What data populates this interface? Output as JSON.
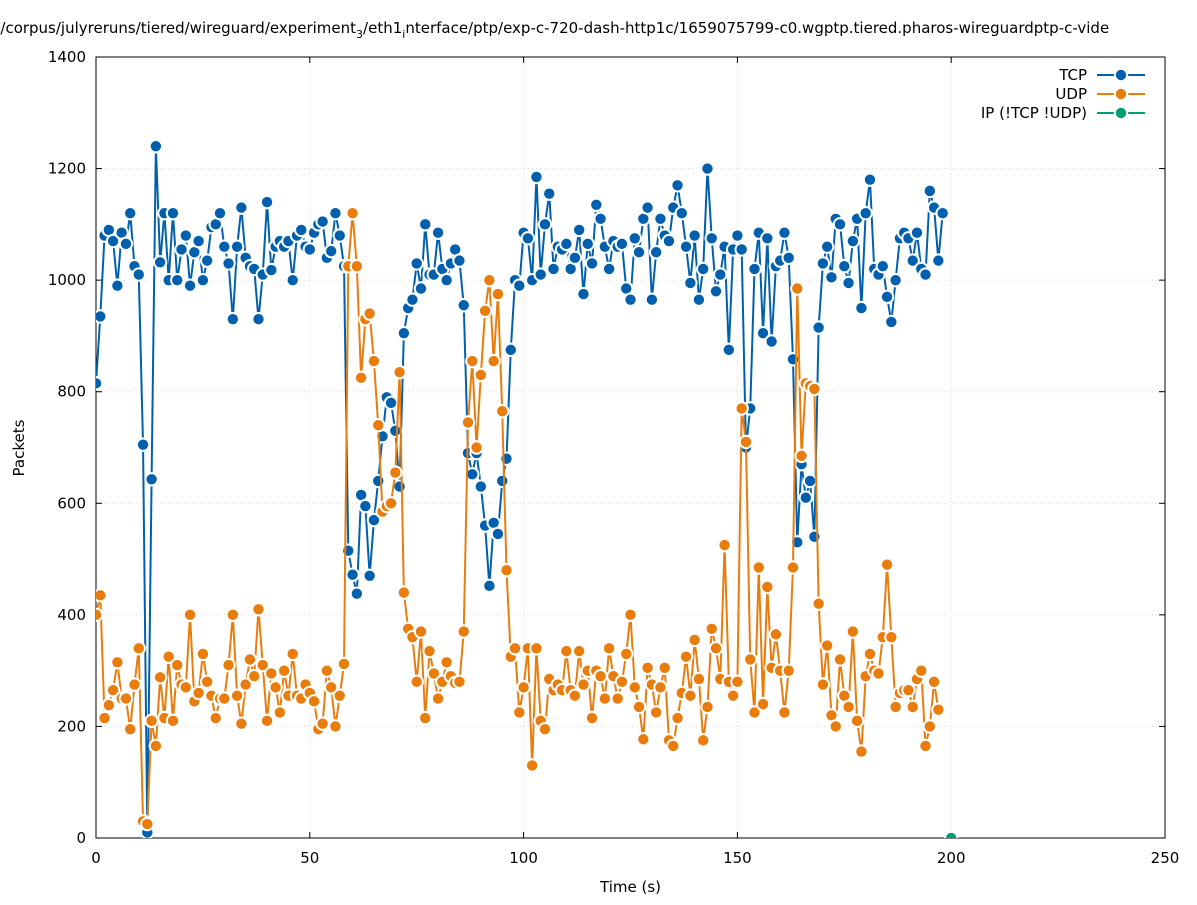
{
  "chart_data": {
    "type": "line",
    "title": "ht/corpus/julyreruns/tiered/wireguard/experiment",
    "title_sub": "3",
    "title_mid": "/eth1",
    "title_sub2": "i",
    "title_rest": "nterface/ptp/exp-c-720-dash-http1c/1659075799-c0.wgptp.tiered.pharos-wireguardptp-c-vide",
    "xlabel": "Time (s)",
    "ylabel": "Packets",
    "xlim": [
      0,
      250
    ],
    "ylim": [
      0,
      1400
    ],
    "xticks": [
      0,
      50,
      100,
      150,
      200,
      250
    ],
    "yticks": [
      0,
      200,
      400,
      600,
      800,
      1000,
      1200,
      1400
    ],
    "grid": true,
    "legend_position": "top-right",
    "series": [
      {
        "name": "TCP",
        "color": "#0060ad",
        "values": [
          815,
          935,
          1080,
          1090,
          1070,
          990,
          1085,
          1065,
          1120,
          1025,
          1010,
          705,
          10,
          643,
          1240,
          1032,
          1120,
          1000,
          1120,
          1000,
          1055,
          1080,
          990,
          1050,
          1070,
          1000,
          1035,
          1095,
          1100,
          1120,
          1060,
          1030,
          930,
          1060,
          1130,
          1040,
          1025,
          1020,
          930,
          1010,
          1140,
          1018,
          1060,
          1070,
          1060,
          1070,
          1000,
          1080,
          1090,
          1060,
          1055,
          1085,
          1100,
          1105,
          1040,
          1052,
          1120,
          1080,
          1025,
          515,
          472,
          438,
          615,
          595,
          470,
          570,
          640,
          720,
          790,
          780,
          730,
          630,
          905,
          950,
          965,
          1030,
          985,
          1100,
          1010,
          1010,
          1085,
          1020,
          1000,
          1030,
          1055,
          1035,
          955,
          690,
          652,
          690,
          630,
          560,
          452,
          565,
          545,
          640,
          680,
          875,
          1000,
          990,
          1085,
          1075,
          1000,
          1185,
          1010,
          1100,
          1155,
          1020,
          1060,
          1055,
          1065,
          1020,
          1040,
          1090,
          975,
          1065,
          1030,
          1135,
          1110,
          1060,
          1020,
          1070,
          1060,
          1065,
          985,
          965,
          1075,
          1050,
          1110,
          1130,
          965,
          1050,
          1110,
          1080,
          1070,
          1130,
          1170,
          1120,
          1060,
          995,
          1080,
          965,
          1020,
          1200,
          1075,
          980,
          1010,
          1060,
          875,
          1055,
          1080,
          1055,
          700,
          770,
          1020,
          1085,
          905,
          1075,
          890,
          1025,
          1035,
          1085,
          1040,
          858,
          530,
          670,
          610,
          640,
          540,
          915,
          1030,
          1060,
          1005,
          1110,
          1100,
          1025,
          995,
          1070,
          1110,
          950,
          1120,
          1180,
          1020,
          1010,
          1025,
          970,
          925,
          1000,
          1075,
          1085,
          1075,
          1035,
          1085,
          1020,
          1010,
          1160,
          1130,
          1035,
          1120
        ]
      },
      {
        "name": "UDP",
        "color": "#e87d0d",
        "values": [
          400,
          435,
          215,
          238,
          265,
          315,
          250,
          250,
          195,
          275,
          340,
          30,
          25,
          210,
          165,
          288,
          215,
          325,
          210,
          310,
          275,
          270,
          400,
          245,
          260,
          330,
          280,
          255,
          215,
          250,
          250,
          310,
          400,
          255,
          205,
          275,
          320,
          290,
          410,
          310,
          210,
          295,
          270,
          225,
          300,
          255,
          330,
          255,
          250,
          275,
          260,
          245,
          195,
          205,
          300,
          270,
          200,
          255,
          312,
          1025,
          1120,
          1025,
          825,
          930,
          940,
          855,
          740,
          585,
          595,
          600,
          655,
          835,
          440,
          375,
          360,
          280,
          370,
          215,
          335,
          295,
          250,
          280,
          315,
          290,
          278,
          280,
          370,
          745,
          855,
          700,
          830,
          945,
          1000,
          855,
          975,
          765,
          480,
          325,
          340,
          225,
          270,
          340,
          130,
          340,
          210,
          195,
          285,
          265,
          275,
          265,
          335,
          265,
          255,
          335,
          275,
          300,
          215,
          300,
          290,
          250,
          340,
          290,
          250,
          280,
          330,
          400,
          270,
          235,
          177,
          305,
          275,
          225,
          270,
          305,
          175,
          165,
          215,
          260,
          325,
          255,
          355,
          285,
          175,
          235,
          375,
          340,
          285,
          525,
          280,
          255,
          280,
          770,
          710,
          320,
          225,
          485,
          240,
          450,
          305,
          365,
          300,
          225,
          300,
          485,
          985,
          685,
          815,
          810,
          805,
          420,
          275,
          345,
          220,
          200,
          320,
          255,
          235,
          370,
          210,
          155,
          290,
          330,
          300,
          295,
          360,
          490,
          360,
          235,
          260,
          265,
          265,
          235,
          285,
          300,
          165,
          200,
          280,
          230
        ]
      },
      {
        "name": "IP (!TCP  !UDP)",
        "color": "#009e73",
        "points": [
          [
            200,
            0
          ]
        ]
      }
    ]
  }
}
